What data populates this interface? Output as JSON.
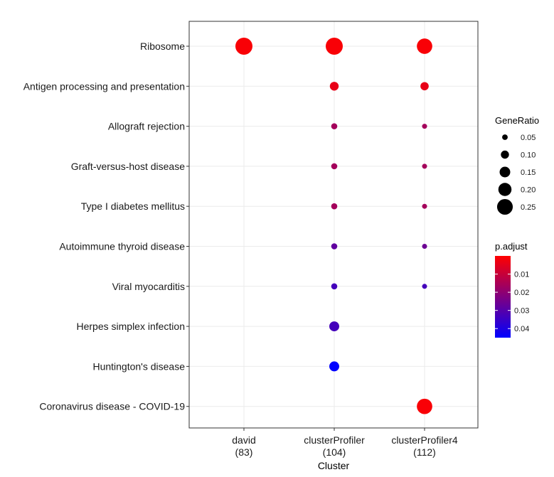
{
  "chart_data": {
    "type": "scatter",
    "title": "",
    "xlabel": "Cluster",
    "ylabel": "",
    "grid": true,
    "legend_placement": "right",
    "x_categories": [
      "david",
      "clusterProfiler",
      "clusterProfiler4"
    ],
    "x_counts": [
      "(83)",
      "(104)",
      "(112)"
    ],
    "y_categories": [
      "Ribosome",
      "Antigen processing and presentation",
      "Allograft rejection",
      "Graft-versus-host disease",
      "Type I diabetes mellitus",
      "Autoimmune thyroid disease",
      "Viral myocarditis",
      "Herpes simplex infection",
      "Huntington's disease",
      "Coronavirus disease - COVID-19"
    ],
    "points": [
      {
        "x": "david",
        "y": "Ribosome",
        "GeneRatio": 0.25,
        "p_adjust": 0.001
      },
      {
        "x": "clusterProfiler",
        "y": "Ribosome",
        "GeneRatio": 0.25,
        "p_adjust": 0.001
      },
      {
        "x": "clusterProfiler4",
        "y": "Ribosome",
        "GeneRatio": 0.22,
        "p_adjust": 0.001
      },
      {
        "x": "clusterProfiler",
        "y": "Antigen processing and presentation",
        "GeneRatio": 0.1,
        "p_adjust": 0.004
      },
      {
        "x": "clusterProfiler4",
        "y": "Antigen processing and presentation",
        "GeneRatio": 0.09,
        "p_adjust": 0.004
      },
      {
        "x": "clusterProfiler",
        "y": "Allograft rejection",
        "GeneRatio": 0.05,
        "p_adjust": 0.016
      },
      {
        "x": "clusterProfiler4",
        "y": "Allograft rejection",
        "GeneRatio": 0.03,
        "p_adjust": 0.016
      },
      {
        "x": "clusterProfiler",
        "y": "Graft-versus-host disease",
        "GeneRatio": 0.05,
        "p_adjust": 0.016
      },
      {
        "x": "clusterProfiler4",
        "y": "Graft-versus-host disease",
        "GeneRatio": 0.03,
        "p_adjust": 0.016
      },
      {
        "x": "clusterProfiler",
        "y": "Type I diabetes mellitus",
        "GeneRatio": 0.05,
        "p_adjust": 0.016
      },
      {
        "x": "clusterProfiler4",
        "y": "Type I diabetes mellitus",
        "GeneRatio": 0.03,
        "p_adjust": 0.016
      },
      {
        "x": "clusterProfiler",
        "y": "Autoimmune thyroid disease",
        "GeneRatio": 0.05,
        "p_adjust": 0.028
      },
      {
        "x": "clusterProfiler4",
        "y": "Autoimmune thyroid disease",
        "GeneRatio": 0.03,
        "p_adjust": 0.026
      },
      {
        "x": "clusterProfiler",
        "y": "Viral myocarditis",
        "GeneRatio": 0.05,
        "p_adjust": 0.033
      },
      {
        "x": "clusterProfiler4",
        "y": "Viral myocarditis",
        "GeneRatio": 0.03,
        "p_adjust": 0.033
      },
      {
        "x": "clusterProfiler",
        "y": "Herpes simplex infection",
        "GeneRatio": 0.12,
        "p_adjust": 0.033
      },
      {
        "x": "clusterProfiler",
        "y": "Huntington's disease",
        "GeneRatio": 0.12,
        "p_adjust": 0.045
      },
      {
        "x": "clusterProfiler4",
        "y": "Coronavirus disease - COVID-19",
        "GeneRatio": 0.22,
        "p_adjust": 0.001
      }
    ],
    "size_legend": {
      "title": "GeneRatio",
      "values": [
        0.05,
        0.1,
        0.15,
        0.2,
        0.25
      ],
      "labels": [
        "0.05",
        "0.10",
        "0.15",
        "0.20",
        "0.25"
      ]
    },
    "color_legend": {
      "title": "p.adjust",
      "domain": [
        0.0,
        0.045
      ],
      "tick_values": [
        0.01,
        0.02,
        0.03,
        0.04
      ],
      "tick_labels": [
        "0.01",
        "0.02",
        "0.03",
        "0.04"
      ],
      "low_color": "#FF0000",
      "high_color": "#0000FF"
    },
    "colors": {
      "panel_border": "#333333",
      "grid": "#EBEBEB"
    }
  }
}
